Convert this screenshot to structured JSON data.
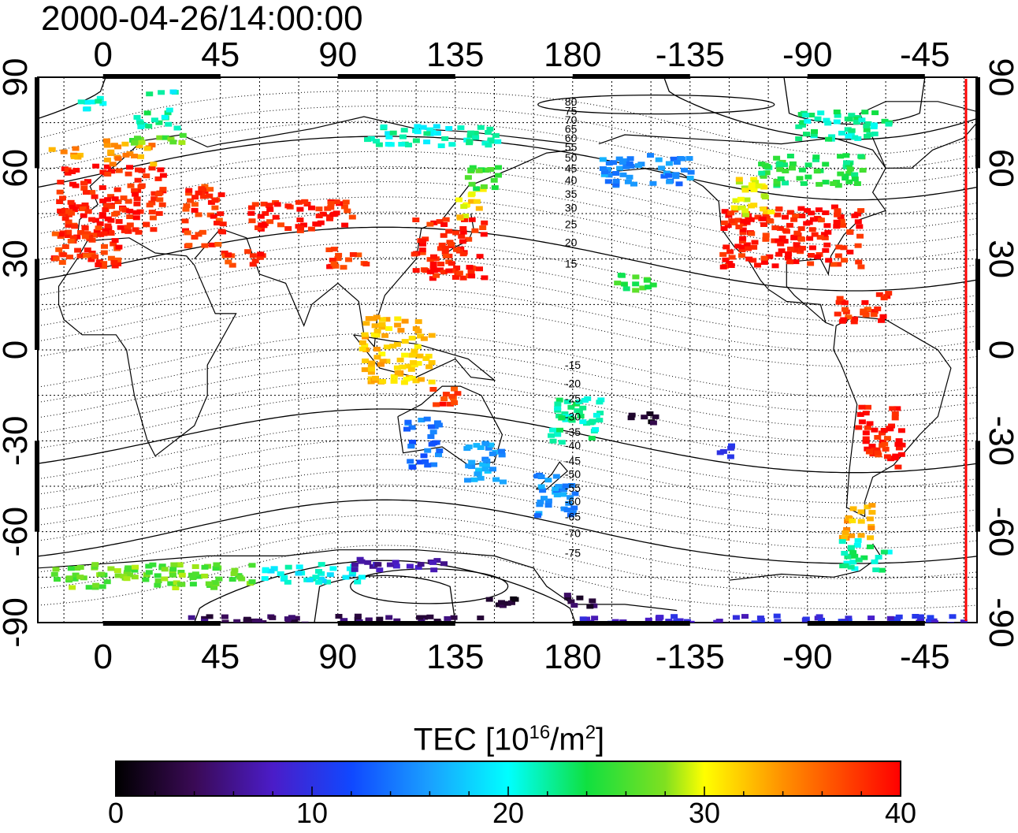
{
  "title": "2000-04-26/14:00:00",
  "map": {
    "lon_ticks": [
      "0",
      "45",
      "90",
      "135",
      "180",
      "-135",
      "-90",
      "-45"
    ],
    "lon_tick_values": [
      0,
      45,
      90,
      135,
      180,
      225,
      270,
      315
    ],
    "lat_ticks": [
      "90",
      "60",
      "30",
      "0",
      "-30",
      "-60",
      "-90"
    ],
    "lat_tick_values": [
      90,
      60,
      30,
      0,
      -30,
      -60,
      -90
    ],
    "lon_range": [
      -25,
      335
    ],
    "lat_range": [
      -90,
      90
    ],
    "grid_spacing_lon": 15,
    "grid_spacing_lat": 15,
    "grid": true,
    "terminator_line": {
      "lon": 330,
      "color": "#ff0000"
    },
    "magnetic_contour_labels": [
      "80",
      "75",
      "70",
      "65",
      "60",
      "55",
      "50",
      "45",
      "40",
      "35",
      "30",
      "25",
      "20",
      "15",
      "-15",
      "-20",
      "-25",
      "-30",
      "-35",
      "-40",
      "-45",
      "-50",
      "-55",
      "-60",
      "-65",
      "-70",
      "-75"
    ]
  },
  "colorbar": {
    "label_prefix": "TEC  [10",
    "label_exp": "16",
    "label_mid": "/m",
    "label_exp2": "2",
    "label_suffix": "]",
    "ticks": [
      "0",
      "10",
      "20",
      "30",
      "40"
    ],
    "range": [
      0,
      40
    ]
  },
  "chart_data": {
    "type": "heatmap",
    "title": "2000-04-26/14:00:00",
    "colorbar_label": "TEC [10^16/m^2]",
    "value_range": [
      0,
      40
    ],
    "regions": [
      {
        "lon": [
          -18,
          22
        ],
        "lat": [
          38,
          62
        ],
        "tec": 39
      },
      {
        "lon": [
          0,
          18
        ],
        "lat": [
          62,
          70
        ],
        "tec": 34
      },
      {
        "lon": [
          8,
          30
        ],
        "lat": [
          68,
          72
        ],
        "tec": 27
      },
      {
        "lon": [
          10,
          28
        ],
        "lat": [
          74,
          80
        ],
        "tec": 22
      },
      {
        "lon": [
          -15,
          0
        ],
        "lat": [
          80,
          84
        ],
        "tec": 21
      },
      {
        "lon": [
          15,
          30
        ],
        "lat": [
          84,
          86
        ],
        "tec": 21
      },
      {
        "lon": [
          -22,
          -10
        ],
        "lat": [
          64,
          68
        ],
        "tec": 34
      },
      {
        "lon": [
          -20,
          5
        ],
        "lat": [
          28,
          42
        ],
        "tec": 38
      },
      {
        "lon": [
          30,
          45
        ],
        "lat": [
          35,
          55
        ],
        "tec": 38
      },
      {
        "lon": [
          55,
          95
        ],
        "lat": [
          40,
          50
        ],
        "tec": 39
      },
      {
        "lon": [
          45,
          60
        ],
        "lat": [
          28,
          34
        ],
        "tec": 38
      },
      {
        "lon": [
          85,
          100
        ],
        "lat": [
          28,
          35
        ],
        "tec": 38
      },
      {
        "lon": [
          118,
          145
        ],
        "lat": [
          24,
          44
        ],
        "tec": 39
      },
      {
        "lon": [
          135,
          145
        ],
        "lat": [
          44,
          54
        ],
        "tec": 31
      },
      {
        "lon": [
          138,
          152
        ],
        "lat": [
          54,
          62
        ],
        "tec": 25
      },
      {
        "lon": [
          100,
          150
        ],
        "lat": [
          68,
          75
        ],
        "tec": 21
      },
      {
        "lon": [
          98,
          125
        ],
        "lat": [
          -10,
          12
        ],
        "tec": 32
      },
      {
        "lon": [
          125,
          135
        ],
        "lat": [
          -20,
          -12
        ],
        "tec": 38
      },
      {
        "lon": [
          115,
          128
        ],
        "lat": [
          -38,
          -22
        ],
        "tec": 14
      },
      {
        "lon": [
          138,
          152
        ],
        "lat": [
          -45,
          -30
        ],
        "tec": 16
      },
      {
        "lon": [
          165,
          180
        ],
        "lat": [
          -55,
          -40
        ],
        "tec": 15
      },
      {
        "lon": [
          170,
          190
        ],
        "lat": [
          -30,
          -15
        ],
        "tec": 22
      },
      {
        "lon": [
          200,
          212
        ],
        "lat": [
          -24,
          -20
        ],
        "tec": 2
      },
      {
        "lon": [
          195,
          210
        ],
        "lat": [
          20,
          26
        ],
        "tec": 25
      },
      {
        "lon": [
          190,
          225
        ],
        "lat": [
          55,
          65
        ],
        "tec": 15
      },
      {
        "lon": [
          235,
          290
        ],
        "lat": [
          28,
          48
        ],
        "tec": 39
      },
      {
        "lon": [
          240,
          255
        ],
        "lat": [
          45,
          58
        ],
        "tec": 30
      },
      {
        "lon": [
          250,
          290
        ],
        "lat": [
          55,
          65
        ],
        "tec": 24
      },
      {
        "lon": [
          265,
          300
        ],
        "lat": [
          70,
          80
        ],
        "tec": 22
      },
      {
        "lon": [
          280,
          300
        ],
        "lat": [
          10,
          20
        ],
        "tec": 38
      },
      {
        "lon": [
          288,
          305
        ],
        "lat": [
          -38,
          -18
        ],
        "tec": 39
      },
      {
        "lon": [
          282,
          295
        ],
        "lat": [
          -62,
          -50
        ],
        "tec": 33
      },
      {
        "lon": [
          282,
          300
        ],
        "lat": [
          -72,
          -62
        ],
        "tec": 22
      },
      {
        "lon": [
          235,
          240
        ],
        "lat": [
          -35,
          -28
        ],
        "tec": 9
      },
      {
        "lon": [
          -20,
          60
        ],
        "lat": [
          -78,
          -70
        ],
        "tec": 27
      },
      {
        "lon": [
          60,
          100
        ],
        "lat": [
          -76,
          -70
        ],
        "tec": 20
      },
      {
        "lon": [
          95,
          130
        ],
        "lat": [
          -72,
          -68
        ],
        "tec": 7
      },
      {
        "lon": [
          145,
          160
        ],
        "lat": [
          -84,
          -80
        ],
        "tec": 2
      },
      {
        "lon": [
          175,
          190
        ],
        "lat": [
          -84,
          -80
        ],
        "tec": 3
      },
      {
        "lon": [
          30,
          145
        ],
        "lat": [
          -90,
          -87
        ],
        "tec": 4
      },
      {
        "lon": [
          180,
          330
        ],
        "lat": [
          -90,
          -87
        ],
        "tec": 9
      }
    ]
  }
}
